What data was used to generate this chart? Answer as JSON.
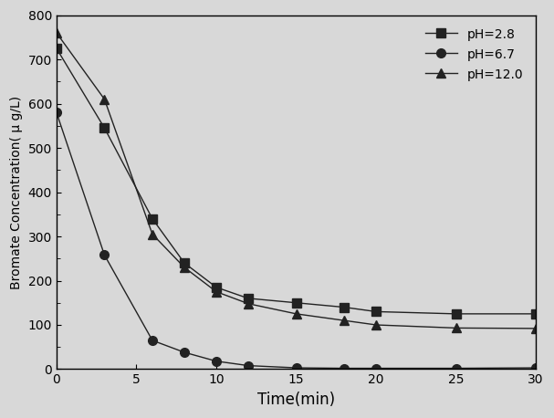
{
  "title": "",
  "xlabel": "Time(min)",
  "ylabel": "Bromate Concentration( μ g/L)",
  "xlim": [
    0,
    30
  ],
  "ylim": [
    0,
    800
  ],
  "xticks": [
    0,
    5,
    10,
    15,
    20,
    25,
    30
  ],
  "yticks": [
    0,
    100,
    200,
    300,
    400,
    500,
    600,
    700,
    800
  ],
  "series": [
    {
      "label": "pH=2.8",
      "x": [
        0,
        3,
        6,
        8,
        10,
        12,
        15,
        18,
        20,
        25,
        30
      ],
      "y": [
        725,
        545,
        340,
        240,
        185,
        160,
        150,
        140,
        130,
        125,
        125
      ],
      "color": "#222222",
      "marker": "s",
      "linestyle": "-"
    },
    {
      "label": "pH=6.7",
      "x": [
        0,
        3,
        6,
        8,
        10,
        12,
        15,
        18,
        20,
        25,
        30
      ],
      "y": [
        580,
        258,
        65,
        38,
        18,
        8,
        3,
        2,
        2,
        2,
        3
      ],
      "color": "#222222",
      "marker": "o",
      "linestyle": "-"
    },
    {
      "label": "pH=12.0",
      "x": [
        0,
        3,
        6,
        8,
        10,
        12,
        15,
        18,
        20,
        25,
        30
      ],
      "y": [
        760,
        610,
        305,
        230,
        175,
        148,
        125,
        110,
        100,
        93,
        92
      ],
      "color": "#222222",
      "marker": "^",
      "linestyle": "-"
    }
  ],
  "legend_loc": "upper right",
  "background_color": "#d8d8d8",
  "figure_facecolor": "#d8d8d8"
}
